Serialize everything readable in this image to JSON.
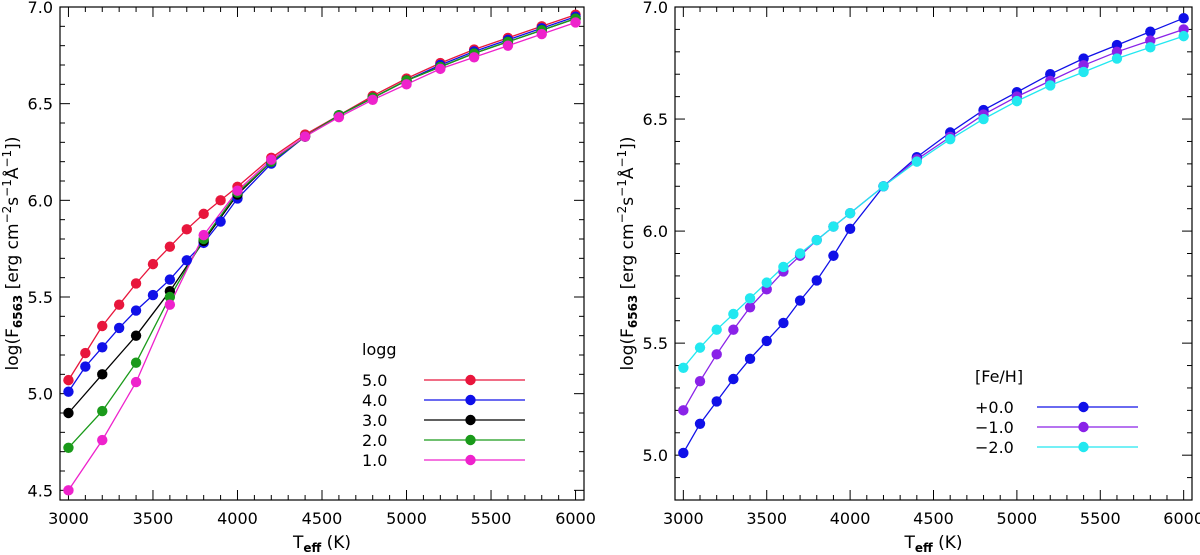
{
  "chart_data": [
    {
      "type": "line",
      "title": "",
      "xlabel_main": "T",
      "xlabel_sub": "eff",
      "xlabel_units": " (K)",
      "ylabel_prefix": "log(F",
      "ylabel_sub": "6563",
      "ylabel_units": " [erg cm",
      "ylabel_sup1": "−2",
      "ylabel_mid": "s",
      "ylabel_sup2": "−1",
      "ylabel_ang": "Å",
      "ylabel_sup3": "−1",
      "ylabel_end": "])",
      "xlim": [
        2950,
        6050
      ],
      "ylim": [
        4.45,
        7.0
      ],
      "xticks": [
        3000,
        3500,
        4000,
        4500,
        5000,
        5500,
        6000
      ],
      "xtick_labels": [
        "3000",
        "3500",
        "4000",
        "4500",
        "5000",
        "5500",
        "6000"
      ],
      "yticks": [
        4.5,
        5.0,
        5.5,
        6.0,
        6.5,
        7.0
      ],
      "ytick_labels": [
        "4.5",
        "5.0",
        "5.5",
        "6.0",
        "6.5",
        "7.0"
      ],
      "legend_title": "logg",
      "legend_position": "lower-right",
      "series": [
        {
          "name": "5.0",
          "color": "#e8163c",
          "x": [
            3000,
            3100,
            3200,
            3300,
            3400,
            3500,
            3600,
            3700,
            3800,
            3900,
            4000,
            4200,
            4400,
            4600,
            4800,
            5000,
            5200,
            5400,
            5600,
            5800,
            6000
          ],
          "y": [
            5.07,
            5.21,
            5.35,
            5.46,
            5.57,
            5.67,
            5.76,
            5.85,
            5.93,
            6.0,
            6.07,
            6.22,
            6.34,
            6.44,
            6.54,
            6.63,
            6.71,
            6.78,
            6.84,
            6.9,
            6.96
          ]
        },
        {
          "name": "4.0",
          "color": "#1010e8",
          "x": [
            3000,
            3100,
            3200,
            3300,
            3400,
            3500,
            3600,
            3700,
            3800,
            3900,
            4000,
            4200,
            4400,
            4600,
            4800,
            5000,
            5200,
            5400,
            5600,
            5800,
            6000
          ],
          "y": [
            5.01,
            5.14,
            5.24,
            5.34,
            5.43,
            5.51,
            5.59,
            5.69,
            5.78,
            5.89,
            6.01,
            6.19,
            6.33,
            6.44,
            6.53,
            6.62,
            6.7,
            6.77,
            6.83,
            6.89,
            6.95
          ]
        },
        {
          "name": "3.0",
          "color": "#000000",
          "x": [
            3000,
            3200,
            3400,
            3600,
            3800,
            4000,
            4200,
            4400,
            4600,
            4800,
            5000,
            5200,
            5400,
            5600,
            5800,
            6000
          ],
          "y": [
            4.9,
            5.1,
            5.3,
            5.53,
            5.79,
            6.03,
            6.2,
            6.33,
            6.44,
            6.53,
            6.62,
            6.69,
            6.76,
            6.82,
            6.88,
            6.94
          ]
        },
        {
          "name": "2.0",
          "color": "#1a9a1a",
          "x": [
            3000,
            3200,
            3400,
            3600,
            3800,
            4000,
            4200,
            4400,
            4600,
            4800,
            5000,
            5200,
            5400,
            5600,
            5800,
            6000
          ],
          "y": [
            4.72,
            4.91,
            5.16,
            5.5,
            5.8,
            6.04,
            6.2,
            6.33,
            6.44,
            6.53,
            6.62,
            6.69,
            6.76,
            6.82,
            6.88,
            6.94
          ]
        },
        {
          "name": "1.0",
          "color": "#ee22cc",
          "x": [
            3000,
            3200,
            3400,
            3600,
            3800,
            4000,
            4200,
            4400,
            4600,
            4800,
            5000,
            5200,
            5400,
            5600,
            5800,
            6000
          ],
          "y": [
            4.5,
            4.76,
            5.06,
            5.46,
            5.82,
            6.05,
            6.21,
            6.33,
            6.43,
            6.52,
            6.6,
            6.68,
            6.74,
            6.8,
            6.86,
            6.92
          ]
        }
      ]
    },
    {
      "type": "line",
      "title": "",
      "xlabel_main": "T",
      "xlabel_sub": "eff",
      "xlabel_units": " (K)",
      "ylabel_prefix": "log(F",
      "ylabel_sub": "6563",
      "ylabel_units": " [erg cm",
      "ylabel_sup1": "−2",
      "ylabel_mid": "s",
      "ylabel_sup2": "−1",
      "ylabel_ang": "Å",
      "ylabel_sup3": "−1",
      "ylabel_end": "])",
      "xlim": [
        2950,
        6050
      ],
      "ylim": [
        4.8,
        7.0
      ],
      "xticks": [
        3000,
        3500,
        4000,
        4500,
        5000,
        5500,
        6000
      ],
      "xtick_labels": [
        "3000",
        "3500",
        "4000",
        "4500",
        "5000",
        "5500",
        "6000"
      ],
      "yticks": [
        5.0,
        5.5,
        6.0,
        6.5,
        7.0
      ],
      "ytick_labels": [
        "5.0",
        "5.5",
        "6.0",
        "6.5",
        "7.0"
      ],
      "legend_title": "[Fe/H]",
      "legend_position": "lower-right",
      "series": [
        {
          "name": "+0.0",
          "color": "#1010e8",
          "x": [
            3000,
            3100,
            3200,
            3300,
            3400,
            3500,
            3600,
            3700,
            3800,
            3900,
            4000,
            4200,
            4400,
            4600,
            4800,
            5000,
            5200,
            5400,
            5600,
            5800,
            6000
          ],
          "y": [
            5.01,
            5.14,
            5.24,
            5.34,
            5.43,
            5.51,
            5.59,
            5.69,
            5.78,
            5.89,
            6.01,
            6.2,
            6.33,
            6.44,
            6.54,
            6.62,
            6.7,
            6.77,
            6.83,
            6.89,
            6.95
          ]
        },
        {
          "name": "−1.0",
          "color": "#8a22e8",
          "x": [
            3000,
            3100,
            3200,
            3300,
            3400,
            3500,
            3600,
            3700,
            3800,
            3900,
            4000,
            4200,
            4400,
            4600,
            4800,
            5000,
            5200,
            5400,
            5600,
            5800,
            6000
          ],
          "y": [
            5.2,
            5.33,
            5.45,
            5.56,
            5.66,
            5.74,
            5.82,
            5.89,
            5.96,
            6.02,
            6.08,
            6.2,
            6.32,
            6.42,
            6.52,
            6.6,
            6.67,
            6.74,
            6.8,
            6.85,
            6.9
          ]
        },
        {
          "name": "−2.0",
          "color": "#22e8f0",
          "x": [
            3000,
            3100,
            3200,
            3300,
            3400,
            3500,
            3600,
            3700,
            3800,
            3900,
            4000,
            4200,
            4400,
            4600,
            4800,
            5000,
            5200,
            5400,
            5600,
            5800,
            6000
          ],
          "y": [
            5.39,
            5.48,
            5.56,
            5.63,
            5.7,
            5.77,
            5.84,
            5.9,
            5.96,
            6.02,
            6.08,
            6.2,
            6.31,
            6.41,
            6.5,
            6.58,
            6.65,
            6.71,
            6.77,
            6.82,
            6.87
          ]
        }
      ]
    }
  ]
}
